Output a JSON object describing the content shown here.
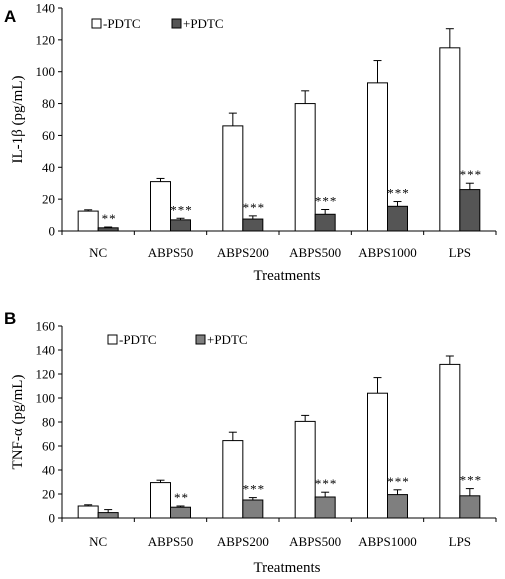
{
  "chart_data": [
    {
      "panel": "A",
      "type": "bar",
      "ylabel": "IL-1β (pg/mL)",
      "xlabel": "Treatments",
      "ylim": [
        0,
        140
      ],
      "yticks": [
        "0",
        "20",
        "40",
        "60",
        "80",
        "100",
        "120",
        "140"
      ],
      "categories": [
        "NC",
        "ABPS50",
        "ABPS200",
        "ABPS500",
        "ABPS1000",
        "LPS"
      ],
      "legend_position": "top-left",
      "series": [
        {
          "name": "-PDTC",
          "color": "#ffffff",
          "values": [
            12.5,
            31,
            66,
            80,
            93,
            115
          ],
          "errors": [
            0.8,
            2,
            8,
            8,
            14,
            12
          ]
        },
        {
          "name": "+PDTC",
          "color": "#555555",
          "values": [
            2,
            7,
            7.5,
            10.5,
            15.5,
            26
          ],
          "errors": [
            0.5,
            1,
            2,
            3,
            3,
            4
          ]
        }
      ],
      "significance": [
        "**",
        "***",
        "***",
        "***",
        "***",
        "***"
      ]
    },
    {
      "panel": "B",
      "type": "bar",
      "ylabel": "TNF-α (pg/mL)",
      "xlabel": "Treatments",
      "ylim": [
        0,
        160
      ],
      "yticks": [
        "0",
        "20",
        "40",
        "60",
        "80",
        "100",
        "120",
        "140",
        "160"
      ],
      "categories": [
        "NC",
        "ABPS50",
        "ABPS200",
        "ABPS500",
        "ABPS1000",
        "LPS"
      ],
      "legend_position": "top-left",
      "series": [
        {
          "name": "-PDTC",
          "color": "#ffffff",
          "values": [
            10,
            29.5,
            64.5,
            80.5,
            104,
            128
          ],
          "errors": [
            1,
            2,
            7,
            5,
            13,
            7
          ]
        },
        {
          "name": "+PDTC",
          "color": "#7f7f7f",
          "values": [
            4.5,
            9,
            15,
            17.5,
            19.5,
            18.5
          ],
          "errors": [
            2.5,
            1,
            2,
            4,
            4,
            6
          ]
        }
      ],
      "significance": [
        "",
        "**",
        "***",
        "***",
        "***",
        "***"
      ]
    }
  ]
}
